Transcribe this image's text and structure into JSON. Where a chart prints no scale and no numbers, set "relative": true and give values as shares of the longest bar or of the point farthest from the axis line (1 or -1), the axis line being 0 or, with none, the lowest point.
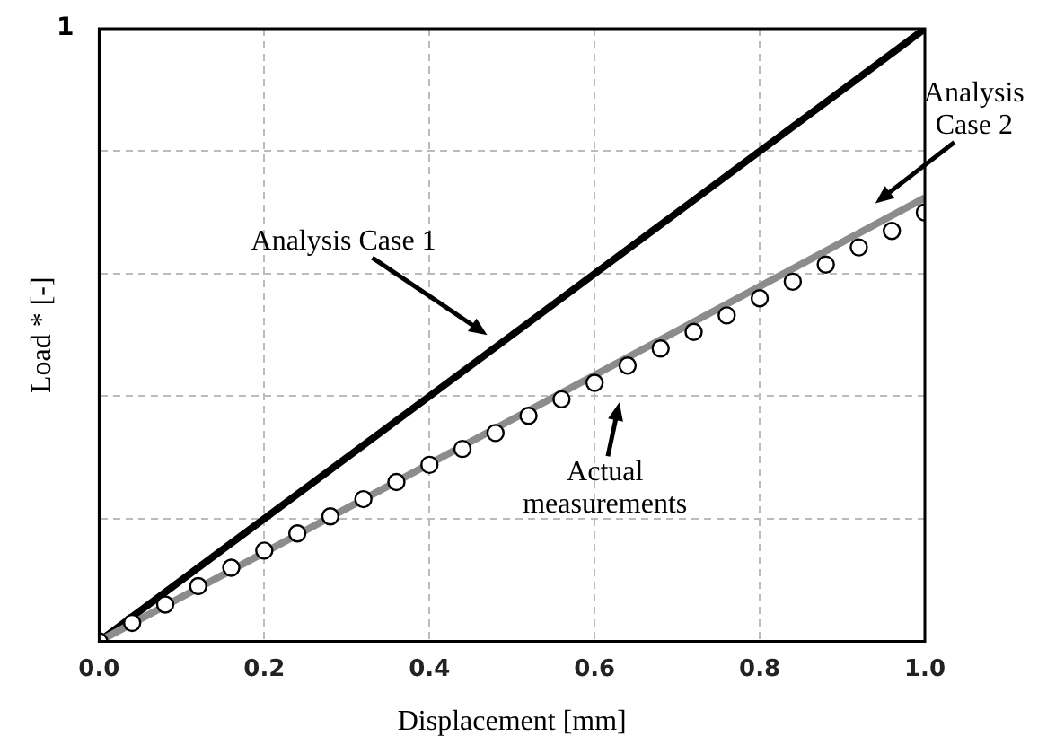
{
  "chart_data": {
    "type": "line",
    "xlabel": "Displacement [mm]",
    "ylabel": "Load * [-]",
    "relative": true,
    "xlim": [
      0,
      1
    ],
    "xticks": [
      {
        "value": 0,
        "label": "0.0"
      },
      {
        "value": 0.2,
        "label": "0.2"
      },
      {
        "value": 0.4,
        "label": "0.4"
      },
      {
        "value": 0.6,
        "label": "0.6"
      },
      {
        "value": 0.8,
        "label": "0.8"
      },
      {
        "value": 1,
        "label": "1.0"
      }
    ],
    "grid": true,
    "legend": false,
    "series": [
      {
        "type": "line",
        "color": "#000000",
        "marker": "none",
        "x": [
          0,
          1
        ],
        "values": [
          0,
          1
        ]
      },
      {
        "type": "scatter",
        "color": "#000000",
        "marker": "circle",
        "x": [
          0,
          0.04,
          0.08,
          0.12,
          0.16,
          0.2,
          0.24,
          0.28,
          0.32,
          0.36,
          0.4,
          0.44,
          0.48,
          0.52,
          0.56,
          0.6,
          0.64,
          0.68,
          0.72,
          0.76,
          0.8,
          0.84,
          0.88,
          0.92,
          0.96,
          1
        ],
        "values": [
          0,
          0.03,
          0.06,
          0.09,
          0.12,
          0.148,
          0.176,
          0.204,
          0.232,
          0.26,
          0.288,
          0.314,
          0.34,
          0.368,
          0.395,
          0.422,
          0.45,
          0.478,
          0.505,
          0.532,
          0.56,
          0.587,
          0.615,
          0.643,
          0.67,
          0.7
        ]
      },
      {
        "type": "line",
        "color": "#8c8c8c",
        "marker": "none",
        "x": [
          0,
          1
        ],
        "values": [
          0,
          0.724
        ]
      }
    ],
    "annotations": [
      "1",
      "Analysis Case 1",
      "Analysis Case 2",
      "Actual measurements"
    ]
  }
}
